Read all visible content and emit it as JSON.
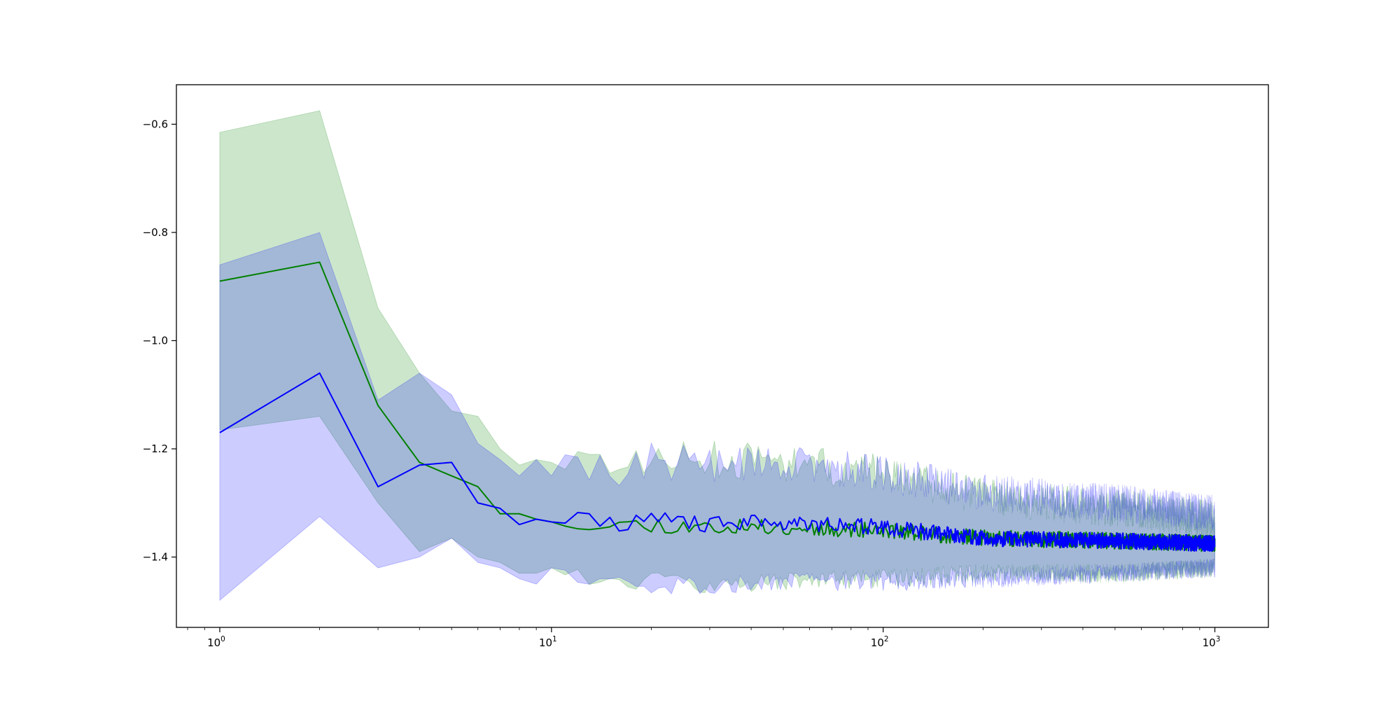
{
  "chart_data": {
    "type": "line",
    "title": "",
    "xlabel": "",
    "ylabel": "",
    "xscale": "log",
    "xlim": [
      0.74,
      1450
    ],
    "ylim": [
      -1.53,
      -0.527
    ],
    "grid": false,
    "x_ticks": [
      {
        "value": 1,
        "base": "10",
        "exp": "0"
      },
      {
        "value": 10,
        "base": "10",
        "exp": "1"
      },
      {
        "value": 100,
        "base": "10",
        "exp": "2"
      },
      {
        "value": 1000,
        "base": "10",
        "exp": "3"
      }
    ],
    "y_ticks": [
      {
        "value": -0.6,
        "label": "−0.6"
      },
      {
        "value": -0.8,
        "label": "−0.8"
      },
      {
        "value": -1.0,
        "label": "−1.0"
      },
      {
        "value": -1.2,
        "label": "−1.2"
      },
      {
        "value": -1.4,
        "label": "−1.4"
      }
    ],
    "series": [
      {
        "color": "#008000",
        "band_color": "#008000",
        "band_opacity": 0.2,
        "noise_seed": 11,
        "x": [
          1,
          2,
          3,
          4,
          5,
          6,
          7,
          8,
          9,
          10,
          12,
          15,
          20,
          30,
          50,
          100,
          200,
          500,
          1000
        ],
        "mean": [
          -0.89,
          -0.855,
          -1.12,
          -1.225,
          -1.25,
          -1.27,
          -1.32,
          -1.32,
          -1.33,
          -1.335,
          -1.335,
          -1.34,
          -1.34,
          -1.345,
          -1.345,
          -1.35,
          -1.365,
          -1.37,
          -1.375
        ],
        "upper": [
          -0.615,
          -0.575,
          -0.94,
          -1.06,
          -1.13,
          -1.14,
          -1.2,
          -1.23,
          -1.22,
          -1.225,
          -1.22,
          -1.235,
          -1.215,
          -1.22,
          -1.225,
          -1.245,
          -1.29,
          -1.31,
          -1.33
        ],
        "lower": [
          -1.165,
          -1.14,
          -1.3,
          -1.39,
          -1.365,
          -1.4,
          -1.41,
          -1.43,
          -1.43,
          -1.42,
          -1.435,
          -1.44,
          -1.445,
          -1.45,
          -1.445,
          -1.44,
          -1.43,
          -1.43,
          -1.42
        ]
      },
      {
        "color": "#0000ff",
        "band_color": "#0000ff",
        "band_opacity": 0.2,
        "noise_seed": 29,
        "x": [
          1,
          2,
          3,
          4,
          5,
          6,
          7,
          8,
          9,
          10,
          12,
          15,
          20,
          30,
          50,
          100,
          200,
          500,
          1000
        ],
        "mean": [
          -1.17,
          -1.06,
          -1.27,
          -1.23,
          -1.225,
          -1.3,
          -1.31,
          -1.34,
          -1.33,
          -1.335,
          -1.325,
          -1.34,
          -1.33,
          -1.34,
          -1.335,
          -1.345,
          -1.365,
          -1.37,
          -1.375
        ],
        "upper": [
          -0.86,
          -0.8,
          -1.11,
          -1.06,
          -1.1,
          -1.19,
          -1.22,
          -1.25,
          -1.22,
          -1.25,
          -1.23,
          -1.25,
          -1.22,
          -1.23,
          -1.225,
          -1.245,
          -1.28,
          -1.3,
          -1.32
        ],
        "lower": [
          -1.48,
          -1.325,
          -1.42,
          -1.4,
          -1.365,
          -1.41,
          -1.42,
          -1.44,
          -1.45,
          -1.42,
          -1.44,
          -1.445,
          -1.45,
          -1.455,
          -1.445,
          -1.445,
          -1.44,
          -1.43,
          -1.42
        ]
      }
    ]
  }
}
